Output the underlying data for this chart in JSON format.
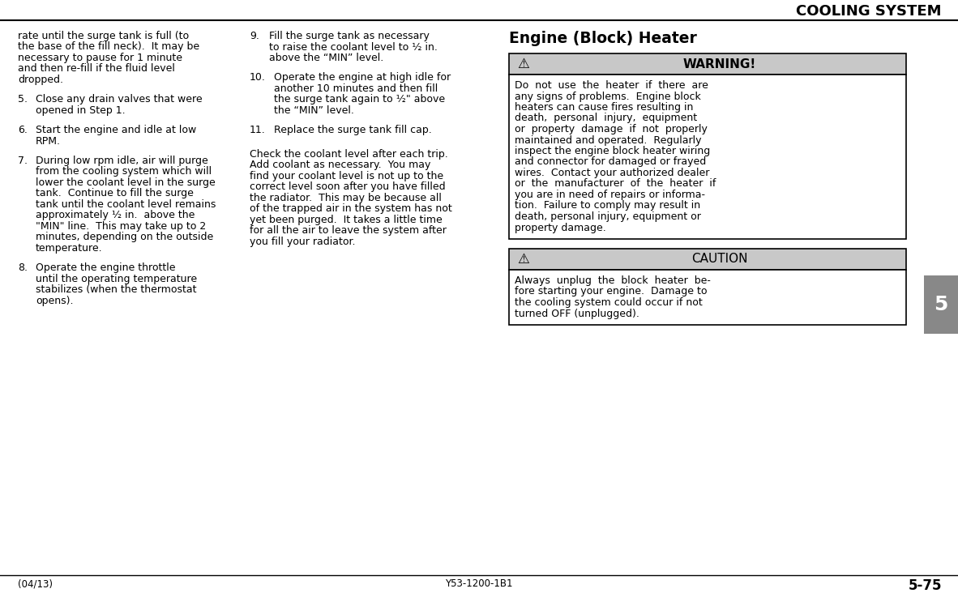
{
  "title": "COOLING SYSTEM",
  "section_title": "Engine (Block) Heater",
  "bg_color": "#ffffff",
  "warning_header": "WARNING!",
  "caution_header": "CAUTION",
  "footer_left": "(04/13)",
  "footer_center": "Y53-1200-1B1",
  "footer_right": "5-75",
  "tab_number": "5",
  "tab_color": "#888888",
  "gray_header_color": "#c8c8c8",
  "border_color": "#000000",
  "para0_lines": [
    "rate until the surge tank is full (to",
    "the base of the fill neck).  It may be",
    "necessary to pause for 1 minute",
    "and then re-fill if the fluid level",
    "dropped."
  ],
  "item5_lines": [
    "Close any drain valves that were",
    "opened in Step 1."
  ],
  "item6_lines": [
    "Start the engine and idle at low",
    "RPM."
  ],
  "item7_lines": [
    "During low rpm idle, air will purge",
    "from the cooling system which will",
    "lower the coolant level in the surge",
    "tank.  Continue to fill the surge",
    "tank until the coolant level remains",
    "approximately ½ in.  above the",
    "\"MIN\" line.  This may take up to 2",
    "minutes, depending on the outside",
    "temperature."
  ],
  "item8_lines": [
    "Operate the engine throttle",
    "until the operating temperature",
    "stabilizes (when the thermostat",
    "opens)."
  ],
  "item9_lines": [
    "Fill the surge tank as necessary",
    "to raise the coolant level to ½ in.",
    "above the “MIN” level."
  ],
  "item10_lines": [
    "Operate the engine at high idle for",
    "another 10 minutes and then fill",
    "the surge tank again to ½\" above",
    "the “MIN” level."
  ],
  "item11_lines": [
    "Replace the surge tank fill cap."
  ],
  "mid_para_lines": [
    "Check the coolant level after each trip.",
    "Add coolant as necessary.  You may",
    "find your coolant level is not up to the",
    "correct level soon after you have filled",
    "the radiator.  This may be because all",
    "of the trapped air in the system has not",
    "yet been purged.  It takes a little time",
    "for all the air to leave the system after",
    "you fill your radiator."
  ],
  "warn_body_lines": [
    "Do  not  use  the  heater  if  there  are",
    "any signs of problems.  Engine block",
    "heaters can cause fires resulting in",
    "death,  personal  injury,  equipment",
    "or  property  damage  if  not  properly",
    "maintained and operated.  Regularly",
    "inspect the engine block heater wiring",
    "and connector for damaged or frayed",
    "wires.  Contact your authorized dealer",
    "or  the  manufacturer  of  the  heater  if",
    "you are in need of repairs or informa-",
    "tion.  Failure to comply may result in",
    "death, personal injury, equipment or",
    "property damage."
  ],
  "caut_body_lines": [
    "Always  unplug  the  block  heater  be-",
    "fore starting your engine.  Damage to",
    "the cooling system could occur if not",
    "turned OFF (unplugged)."
  ]
}
